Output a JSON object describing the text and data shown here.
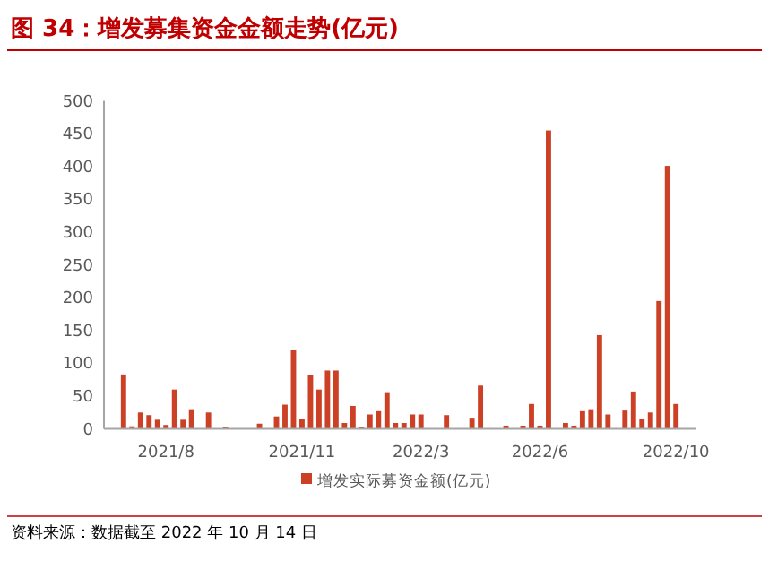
{
  "chart_data": {
    "type": "bar",
    "title": "图 34：增发募集资金金额走势(亿元)",
    "categories": [
      null,
      null,
      null,
      null,
      null,
      "2021/8",
      null,
      null,
      null,
      null,
      null,
      null,
      null,
      null,
      null,
      null,
      null,
      null,
      null,
      null,
      null,
      "2021/11",
      null,
      null,
      null,
      null,
      null,
      null,
      null,
      null,
      null,
      null,
      null,
      null,
      null,
      "2022/3",
      null,
      null,
      null,
      null,
      null,
      null,
      null,
      null,
      null,
      null,
      null,
      null,
      null,
      "2022/6",
      null,
      null,
      null,
      null,
      null,
      null,
      null,
      null,
      null,
      null,
      null,
      null,
      null,
      null,
      null,
      "2022/10"
    ],
    "series": [
      {
        "name": "增发实际募资金额(亿元)",
        "color": "#cc4125",
        "values": [
          83,
          4,
          25,
          21,
          14,
          6,
          60,
          14,
          30,
          null,
          25,
          null,
          3,
          null,
          null,
          null,
          8,
          null,
          19,
          37,
          121,
          15,
          82,
          60,
          89,
          89,
          9,
          35,
          3,
          22,
          27,
          56,
          9,
          9,
          22,
          22,
          null,
          null,
          21,
          null,
          null,
          17,
          66,
          null,
          null,
          5,
          null,
          5,
          38,
          5,
          455,
          null,
          9,
          5,
          27,
          30,
          143,
          22,
          null,
          28,
          57,
          15,
          25,
          195,
          401,
          38
        ]
      }
    ],
    "ylim": [
      0,
      500
    ],
    "yticks": [
      0,
      50,
      100,
      150,
      200,
      250,
      300,
      350,
      400,
      450,
      500
    ],
    "legend": "bottom",
    "annotations": [
      "资料来源：数据截至 2022 年 10 月 14 日"
    ]
  }
}
